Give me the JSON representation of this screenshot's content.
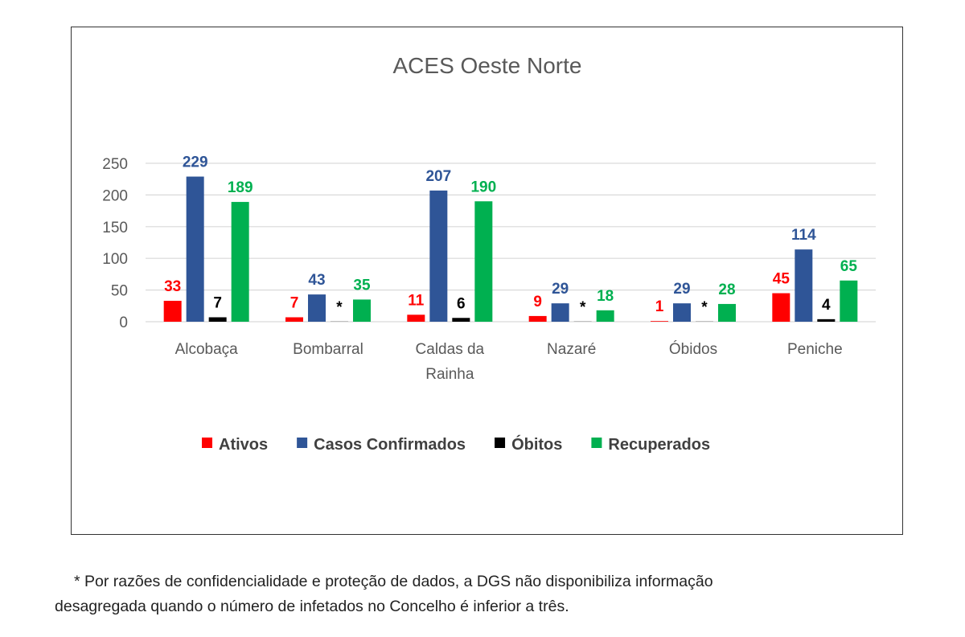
{
  "chart_data": {
    "type": "bar",
    "title": "ACES Oeste Norte",
    "categories": [
      [
        "Alcobaça"
      ],
      [
        "Bombarral"
      ],
      [
        "Caldas da",
        "Rainha"
      ],
      [
        "Nazaré"
      ],
      [
        "Óbidos"
      ],
      [
        "Peniche"
      ]
    ],
    "series": [
      {
        "name": "Ativos",
        "color": "#ff0000",
        "values": [
          33,
          7,
          11,
          9,
          1,
          45
        ],
        "labels": [
          "33",
          "7",
          "11",
          "9",
          "1",
          "45"
        ]
      },
      {
        "name": "Casos Confirmados",
        "color": "#2f5597",
        "values": [
          229,
          43,
          207,
          29,
          29,
          114
        ],
        "labels": [
          "229",
          "43",
          "207",
          "29",
          "29",
          "114"
        ]
      },
      {
        "name": "Óbitos",
        "color": "#000000",
        "values": [
          7,
          0,
          6,
          0,
          0,
          4
        ],
        "labels": [
          "7",
          "*",
          "6",
          "*",
          "*",
          "4"
        ]
      },
      {
        "name": "Recuperados",
        "color": "#00b050",
        "values": [
          189,
          35,
          190,
          18,
          28,
          65
        ],
        "labels": [
          "189",
          "35",
          "190",
          "18",
          "28",
          "65"
        ]
      }
    ],
    "ylim": [
      0,
      250
    ],
    "yticks": [
      0,
      50,
      100,
      150,
      200,
      250
    ],
    "grid": true,
    "legend_position": "bottom"
  },
  "footnote": {
    "line1": "* Por razões de confidencialidade e proteção de dados, a DGS não disponibiliza informação",
    "line2": "desagregada quando o número de infetados no Concelho é inferior a três."
  }
}
